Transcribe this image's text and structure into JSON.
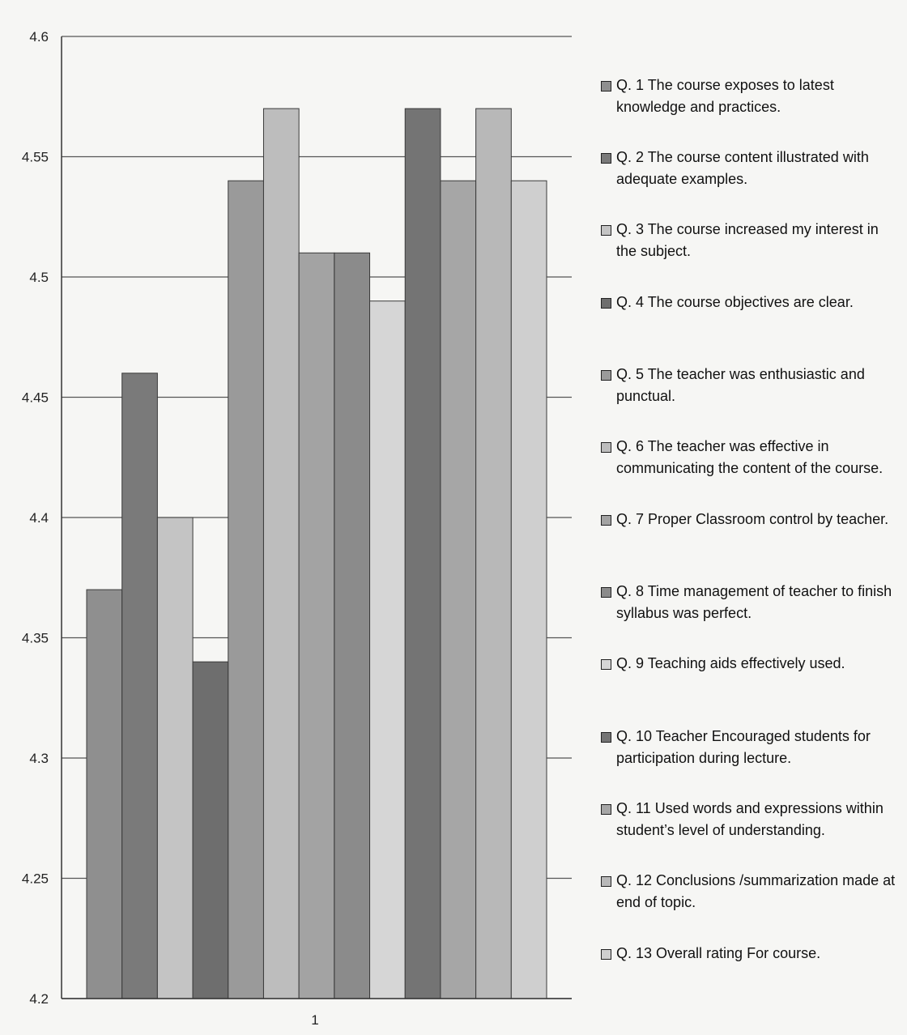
{
  "chart_data": {
    "type": "bar",
    "categories": [
      "1"
    ],
    "ylim": [
      4.2,
      4.6
    ],
    "yticks": [
      "4.2",
      "4.25",
      "4.3",
      "4.35",
      "4.4",
      "4.45",
      "4.5",
      "4.55",
      "4.6"
    ],
    "grid": true,
    "legend_position": "right",
    "title": "",
    "xlabel": "",
    "ylabel": "",
    "series": [
      {
        "name": "Q. 1 The course exposes to latest knowledge and practices.",
        "values": [
          4.37
        ],
        "color": "#8f8f8f"
      },
      {
        "name": "Q. 2 The course content illustrated with adequate examples.",
        "values": [
          4.46
        ],
        "color": "#7a7a7a"
      },
      {
        "name": "Q. 3 The course increased my interest in the subject.",
        "values": [
          4.4
        ],
        "color": "#c4c4c4"
      },
      {
        "name": "Q. 4 The course objectives are clear.",
        "values": [
          4.34
        ],
        "color": "#6e6e6e"
      },
      {
        "name": "Q. 5 The teacher was enthusiastic and punctual.",
        "values": [
          4.54
        ],
        "color": "#9a9a9a"
      },
      {
        "name": "Q. 6 The teacher was effective in communicating the content of the course.",
        "values": [
          4.57
        ],
        "color": "#bdbdbd"
      },
      {
        "name": "Q. 7 Proper Classroom control by teacher.",
        "values": [
          4.51
        ],
        "color": "#a3a3a3"
      },
      {
        "name": "Q. 8 Time management of teacher to finish syllabus was perfect.",
        "values": [
          4.51
        ],
        "color": "#8b8b8b"
      },
      {
        "name": "Q. 9 Teaching aids effectively used.",
        "values": [
          4.49
        ],
        "color": "#d6d6d6"
      },
      {
        "name": "Q. 10 Teacher Encouraged students for participation during lecture.",
        "values": [
          4.57
        ],
        "color": "#747474"
      },
      {
        "name": "Q. 11 Used words and expressions within student’s level of understanding.",
        "values": [
          4.54
        ],
        "color": "#a6a6a6"
      },
      {
        "name": "Q. 12 Conclusions /summarization made at end of topic.",
        "values": [
          4.57
        ],
        "color": "#b8b8b8"
      },
      {
        "name": "Q. 13 Overall rating For course.",
        "values": [
          4.54
        ],
        "color": "#cfcfcf"
      }
    ]
  }
}
